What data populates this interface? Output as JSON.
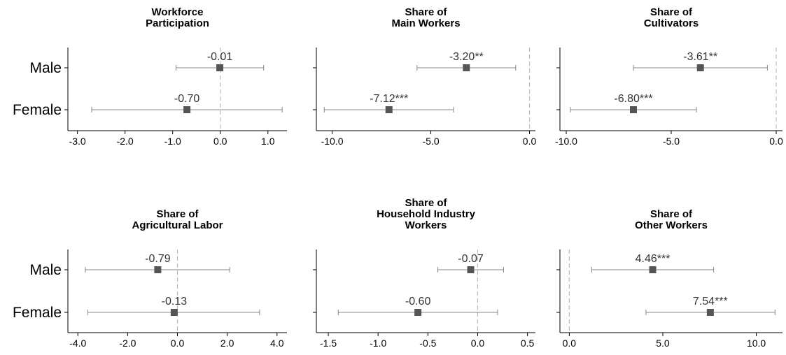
{
  "chart_data": [
    {
      "type": "coefficient-plot",
      "title": [
        "Workforce",
        "Participation"
      ],
      "categories": [
        "Male",
        "Female"
      ],
      "estimates": [
        -0.01,
        -0.7
      ],
      "ci_low": [
        -0.93,
        -2.7
      ],
      "ci_high": [
        0.91,
        1.3
      ],
      "labels": [
        "-0.01",
        "-0.70"
      ],
      "xlim": [
        -3.2,
        1.4
      ],
      "xticks": [
        -3.0,
        -2.0,
        -1.0,
        0.0,
        1.0
      ],
      "xtick_labels": [
        "-3.0",
        "-2.0",
        "-1.0",
        "0.0",
        "1.0"
      ],
      "zero_line": true
    },
    {
      "type": "coefficient-plot",
      "title": [
        "Share of",
        "Main Workers"
      ],
      "categories": [
        "Male",
        "Female"
      ],
      "estimates": [
        -3.2,
        -7.12
      ],
      "ci_low": [
        -5.7,
        -10.4
      ],
      "ci_high": [
        -0.7,
        -3.85
      ],
      "labels": [
        "-3.20**",
        "-7.12***"
      ],
      "xlim": [
        -10.8,
        0.3
      ],
      "xticks": [
        -10.0,
        -5.0,
        0.0
      ],
      "xtick_labels": [
        "-10.0",
        "-5.0",
        "0.0"
      ],
      "zero_line": true
    },
    {
      "type": "coefficient-plot",
      "title": [
        "Share of",
        "Cultivators"
      ],
      "categories": [
        "Male",
        "Female"
      ],
      "estimates": [
        -3.61,
        -6.8
      ],
      "ci_low": [
        -6.8,
        -9.8
      ],
      "ci_high": [
        -0.42,
        -3.8
      ],
      "labels": [
        "-3.61**",
        "-6.80***"
      ],
      "xlim": [
        -10.3,
        0.3
      ],
      "xticks": [
        -10.0,
        -5.0,
        0.0
      ],
      "xtick_labels": [
        "-10.0",
        "-5.0",
        "0.0"
      ],
      "zero_line": true
    },
    {
      "type": "coefficient-plot",
      "title": [
        "Share of",
        "Agricultural Labor"
      ],
      "categories": [
        "Male",
        "Female"
      ],
      "estimates": [
        -0.79,
        -0.13
      ],
      "ci_low": [
        -3.7,
        -3.6
      ],
      "ci_high": [
        2.1,
        3.3
      ],
      "labels": [
        "-0.79",
        "-0.13"
      ],
      "xlim": [
        -4.4,
        4.4
      ],
      "xticks": [
        -4.0,
        -2.0,
        0.0,
        2.0,
        4.0
      ],
      "xtick_labels": [
        "-4.0",
        "-2.0",
        "0.0",
        "2.0",
        "4.0"
      ],
      "zero_line": true
    },
    {
      "type": "coefficient-plot",
      "title": [
        "Share of",
        "Household Industry",
        "Workers"
      ],
      "categories": [
        "Male",
        "Female"
      ],
      "estimates": [
        -0.07,
        -0.6
      ],
      "ci_low": [
        -0.4,
        -1.4
      ],
      "ci_high": [
        0.26,
        0.2
      ],
      "labels": [
        "-0.07",
        "-0.60"
      ],
      "xlim": [
        -1.62,
        0.58
      ],
      "xticks": [
        -1.5,
        -1.0,
        -0.5,
        0.0,
        0.5
      ],
      "xtick_labels": [
        "-1.5",
        "-1.0",
        "-0.5",
        "0.0",
        "0.5"
      ],
      "zero_line": true
    },
    {
      "type": "coefficient-plot",
      "title": [
        "Share of",
        "Other Workers"
      ],
      "categories": [
        "Male",
        "Female"
      ],
      "estimates": [
        4.46,
        7.54
      ],
      "ci_low": [
        1.2,
        4.1
      ],
      "ci_high": [
        7.72,
        11.0
      ],
      "labels": [
        "4.46***",
        "7.54***"
      ],
      "xlim": [
        -0.5,
        11.4
      ],
      "xticks": [
        0.0,
        5.0,
        10.0
      ],
      "xtick_labels": [
        "0.0",
        "5.0",
        "10.0"
      ],
      "zero_line": true
    }
  ],
  "colors": {
    "marker": "#555555",
    "ci_line": "#888888",
    "zero_line": "#bbbbbb",
    "axis": "#000000"
  }
}
